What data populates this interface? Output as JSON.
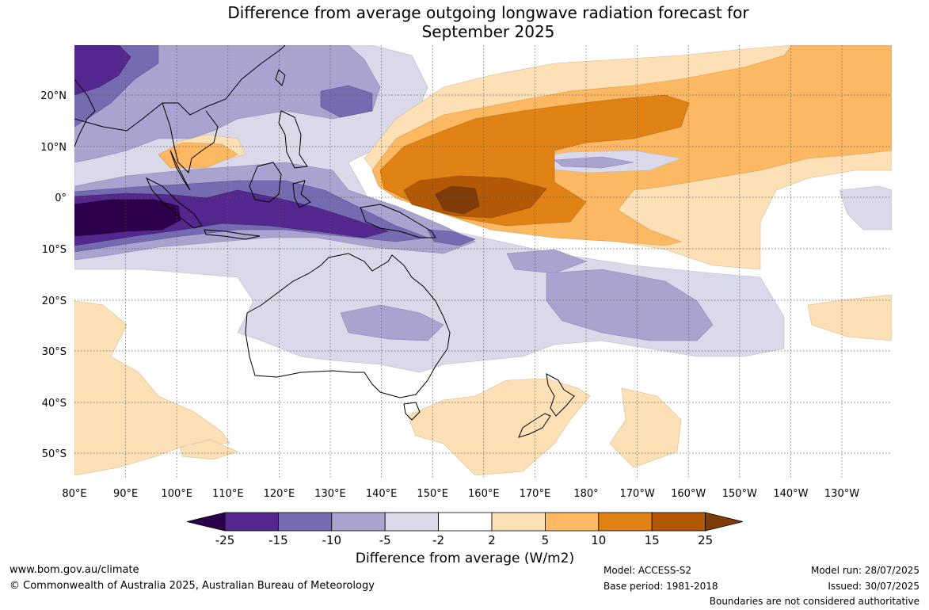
{
  "title": {
    "line1": "Difference from average outgoing longwave radiation forecast for",
    "line2": "September 2025"
  },
  "map": {
    "lat_labels": [
      "20°N",
      "10°N",
      "0°",
      "10°S",
      "20°S",
      "30°S",
      "40°S",
      "50°S"
    ],
    "lon_labels": [
      "80°E",
      "90°E",
      "100°E",
      "110°E",
      "120°E",
      "130°E",
      "140°E",
      "150°E",
      "160°E",
      "170°E",
      "180°",
      "170°W",
      "160°W",
      "150°W",
      "140°W",
      "130°W"
    ]
  },
  "colorbar": {
    "ticks": [
      "-25",
      "-15",
      "-10",
      "-5",
      "-2",
      "2",
      "5",
      "10",
      "15",
      "25"
    ],
    "colors": [
      "#54278f",
      "#756bb1",
      "#aaa3cf",
      "#d9d9ea",
      "#ffffff",
      "#fee0b6",
      "#fdb863",
      "#e08214",
      "#b35806"
    ],
    "under_color": "#2d004b",
    "over_color": "#7f3b08",
    "label": "Difference from average (W/m2)"
  },
  "footer": {
    "website": "www.bom.gov.au/climate",
    "copyright": "© Commonwealth of Australia 2025, Australian Bureau of Meteorology",
    "model": "Model: ACCESS-S2",
    "base_period": "Base period: 1981-2018",
    "model_run": "Model run: 28/07/2025",
    "issued": "Issued: 30/07/2025",
    "disclaimer": "Boundaries are not considered authoritative"
  }
}
